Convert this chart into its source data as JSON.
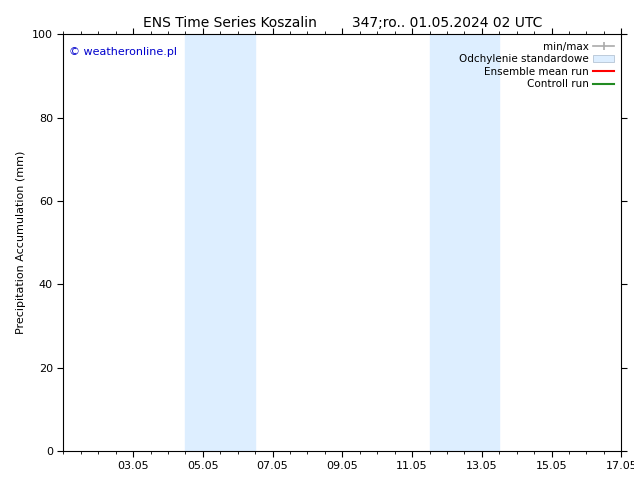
{
  "title": "ENS Time Series Koszalin        347;ro.. 01.05.2024 02 UTC",
  "ylabel": "Precipitation Accumulation (mm)",
  "watermark": "© weatheronline.pl",
  "watermark_color": "#0000cc",
  "ylim": [
    0,
    100
  ],
  "xtick_labels": [
    "03.05",
    "05.05",
    "07.05",
    "09.05",
    "11.05",
    "13.05",
    "15.05",
    "17.05"
  ],
  "xtick_positions": [
    2,
    4,
    6,
    8,
    10,
    12,
    14,
    16
  ],
  "ytick_positions": [
    0,
    20,
    40,
    60,
    80,
    100
  ],
  "shaded_regions": [
    {
      "xmin": 3.5,
      "xmax": 5.5,
      "color": "#ddeeff"
    },
    {
      "xmin": 10.5,
      "xmax": 12.5,
      "color": "#ddeeff"
    }
  ],
  "background_color": "#ffffff",
  "legend_entries": [
    {
      "label": "min/max",
      "color": "#aaaaaa",
      "lw": 1.2
    },
    {
      "label": "Odchylenie standardowe",
      "color": "#ccddee"
    },
    {
      "label": "Ensemble mean run",
      "color": "#ff0000",
      "lw": 1.5
    },
    {
      "label": "Controll run",
      "color": "#228B22",
      "lw": 1.5
    }
  ],
  "title_fontsize": 10,
  "label_fontsize": 8,
  "tick_fontsize": 8,
  "legend_fontsize": 7.5
}
